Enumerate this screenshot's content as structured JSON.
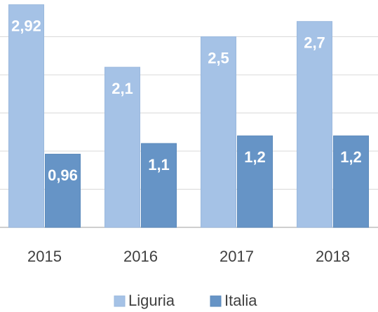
{
  "chart_data": {
    "type": "bar",
    "categories": [
      "2015",
      "2016",
      "2017",
      "2018"
    ],
    "series": [
      {
        "name": "Liguria",
        "color": "#a5c2e6",
        "values": [
          2.92,
          2.1,
          2.5,
          2.7
        ],
        "value_labels": [
          "2,92",
          "2,1",
          "2,5",
          "2,7"
        ]
      },
      {
        "name": "Italia",
        "color": "#6694c6",
        "values": [
          0.96,
          1.1,
          1.2,
          1.2
        ],
        "value_labels": [
          "0,96",
          "1,1",
          "1,2",
          "1,2"
        ]
      }
    ],
    "ylim": [
      0,
      3
    ],
    "yticks": [
      0,
      0.5,
      1,
      1.5,
      2,
      2.5
    ],
    "grid": true,
    "legend": "bottom"
  }
}
